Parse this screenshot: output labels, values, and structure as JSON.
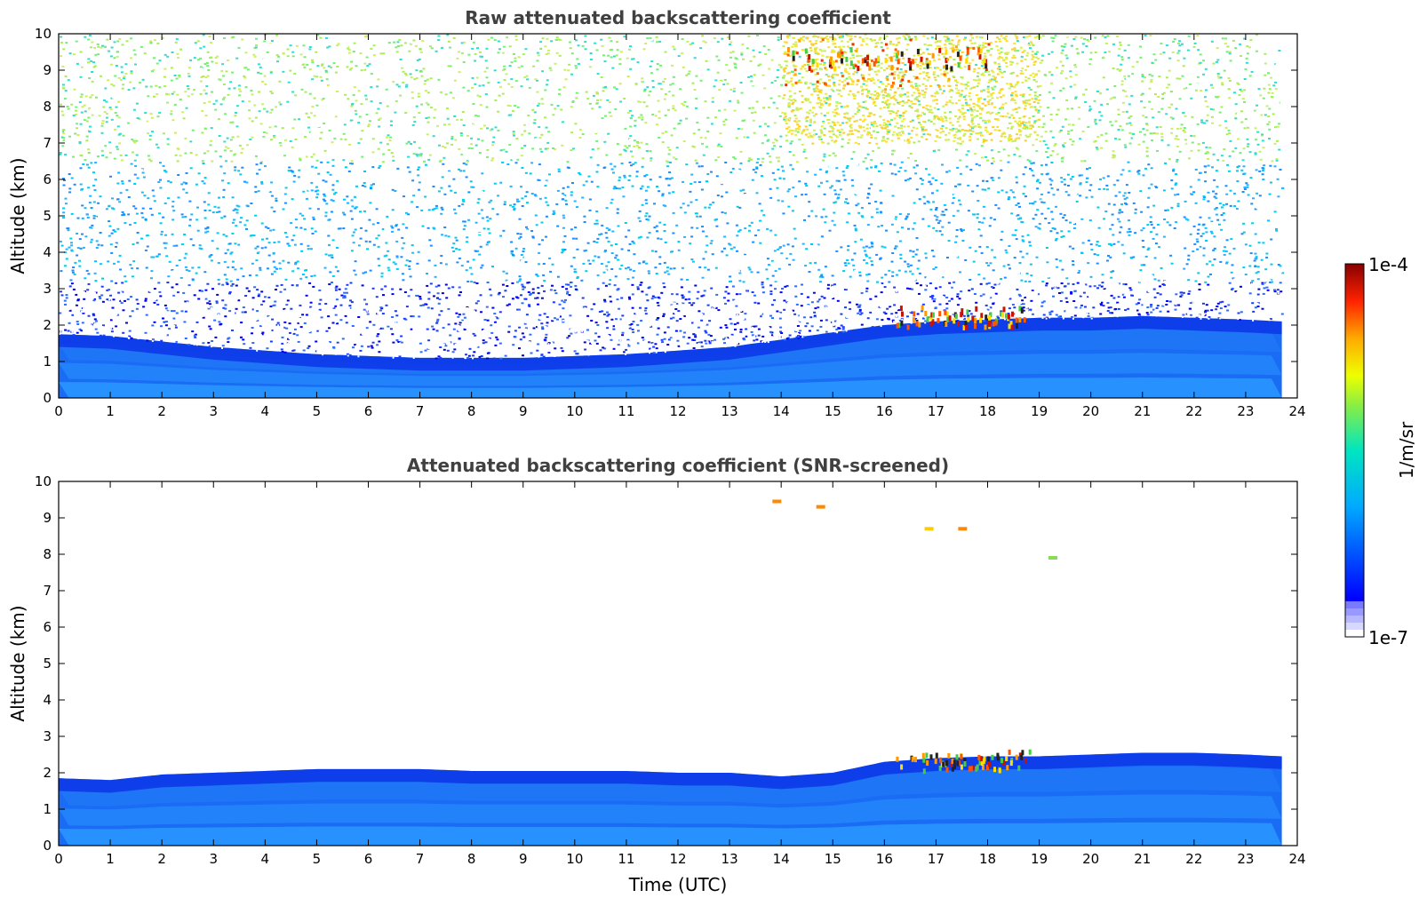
{
  "chart_data": [
    {
      "type": "heatmap",
      "title": "Raw attenuated backscattering coefficient",
      "xlabel": "",
      "ylabel": "Altitude (km)",
      "xlim": [
        0,
        24
      ],
      "ylim": [
        0,
        10
      ],
      "xticks": [
        "0",
        "1",
        "2",
        "3",
        "4",
        "5",
        "6",
        "7",
        "8",
        "9",
        "10",
        "11",
        "12",
        "13",
        "14",
        "15",
        "16",
        "17",
        "18",
        "19",
        "20",
        "21",
        "22",
        "23",
        "24"
      ],
      "yticks": [
        "0",
        "1",
        "2",
        "3",
        "4",
        "5",
        "6",
        "7",
        "8",
        "9",
        "10"
      ],
      "data_end_time": 23.7,
      "boundary_layer_top_km": [
        [
          0,
          1.75
        ],
        [
          1,
          1.7
        ],
        [
          2,
          1.55
        ],
        [
          3,
          1.4
        ],
        [
          4,
          1.3
        ],
        [
          5,
          1.2
        ],
        [
          6,
          1.15
        ],
        [
          7,
          1.1
        ],
        [
          8,
          1.1
        ],
        [
          9,
          1.1
        ],
        [
          10,
          1.15
        ],
        [
          11,
          1.2
        ],
        [
          12,
          1.3
        ],
        [
          13,
          1.4
        ],
        [
          14,
          1.6
        ],
        [
          15,
          1.8
        ],
        [
          16,
          2.0
        ],
        [
          17,
          2.1
        ],
        [
          18,
          2.15
        ],
        [
          19,
          2.2
        ],
        [
          20,
          2.2
        ],
        [
          21,
          2.25
        ],
        [
          22,
          2.2
        ],
        [
          23,
          2.15
        ],
        [
          23.7,
          2.1
        ]
      ],
      "noise": "dense speckle above boundary layer, increasing with altitude",
      "cloud_features": [
        {
          "time_start": 16.2,
          "time_end": 18.8,
          "altitude_km": 2.1,
          "intensity": "high"
        },
        {
          "time_start": 14.0,
          "time_end": 18.0,
          "altitude_km": 9.2,
          "intensity": "high"
        }
      ]
    },
    {
      "type": "heatmap",
      "title": "Attenuated backscattering coefficient (SNR-screened)",
      "xlabel": "Time (UTC)",
      "ylabel": "Altitude (km)",
      "xlim": [
        0,
        24
      ],
      "ylim": [
        0,
        10
      ],
      "xticks": [
        "0",
        "1",
        "2",
        "3",
        "4",
        "5",
        "6",
        "7",
        "8",
        "9",
        "10",
        "11",
        "12",
        "13",
        "14",
        "15",
        "16",
        "17",
        "18",
        "19",
        "20",
        "21",
        "22",
        "23",
        "24"
      ],
      "yticks": [
        "0",
        "1",
        "2",
        "3",
        "4",
        "5",
        "6",
        "7",
        "8",
        "9",
        "10"
      ],
      "data_end_time": 23.7,
      "screened_top_km": [
        [
          0,
          1.85
        ],
        [
          1,
          1.8
        ],
        [
          2,
          1.95
        ],
        [
          3,
          2.0
        ],
        [
          4,
          2.05
        ],
        [
          5,
          2.1
        ],
        [
          6,
          2.1
        ],
        [
          7,
          2.1
        ],
        [
          8,
          2.05
        ],
        [
          9,
          2.05
        ],
        [
          10,
          2.05
        ],
        [
          11,
          2.05
        ],
        [
          12,
          2.0
        ],
        [
          13,
          2.0
        ],
        [
          14,
          1.9
        ],
        [
          15,
          2.0
        ],
        [
          16,
          2.3
        ],
        [
          17,
          2.4
        ],
        [
          18,
          2.45
        ],
        [
          19,
          2.45
        ],
        [
          20,
          2.5
        ],
        [
          21,
          2.55
        ],
        [
          22,
          2.55
        ],
        [
          23,
          2.5
        ],
        [
          23.7,
          2.45
        ]
      ],
      "cloud_features": [
        {
          "time_start": 16.2,
          "time_end": 18.8,
          "altitude_km": 2.2,
          "intensity": "high"
        },
        {
          "time": 13.95,
          "altitude_km": 9.45,
          "intensity": "high"
        },
        {
          "time": 14.8,
          "altitude_km": 9.3,
          "intensity": "high"
        },
        {
          "time": 16.9,
          "altitude_km": 8.7,
          "intensity": "medium"
        },
        {
          "time": 17.55,
          "altitude_km": 8.7,
          "intensity": "high"
        },
        {
          "time": 19.3,
          "altitude_km": 7.9,
          "intensity": "low"
        }
      ]
    }
  ],
  "colorbar": {
    "label": "1/m/sr",
    "min_label": "1e-7",
    "max_label": "1e-4",
    "colormap": "jet"
  }
}
